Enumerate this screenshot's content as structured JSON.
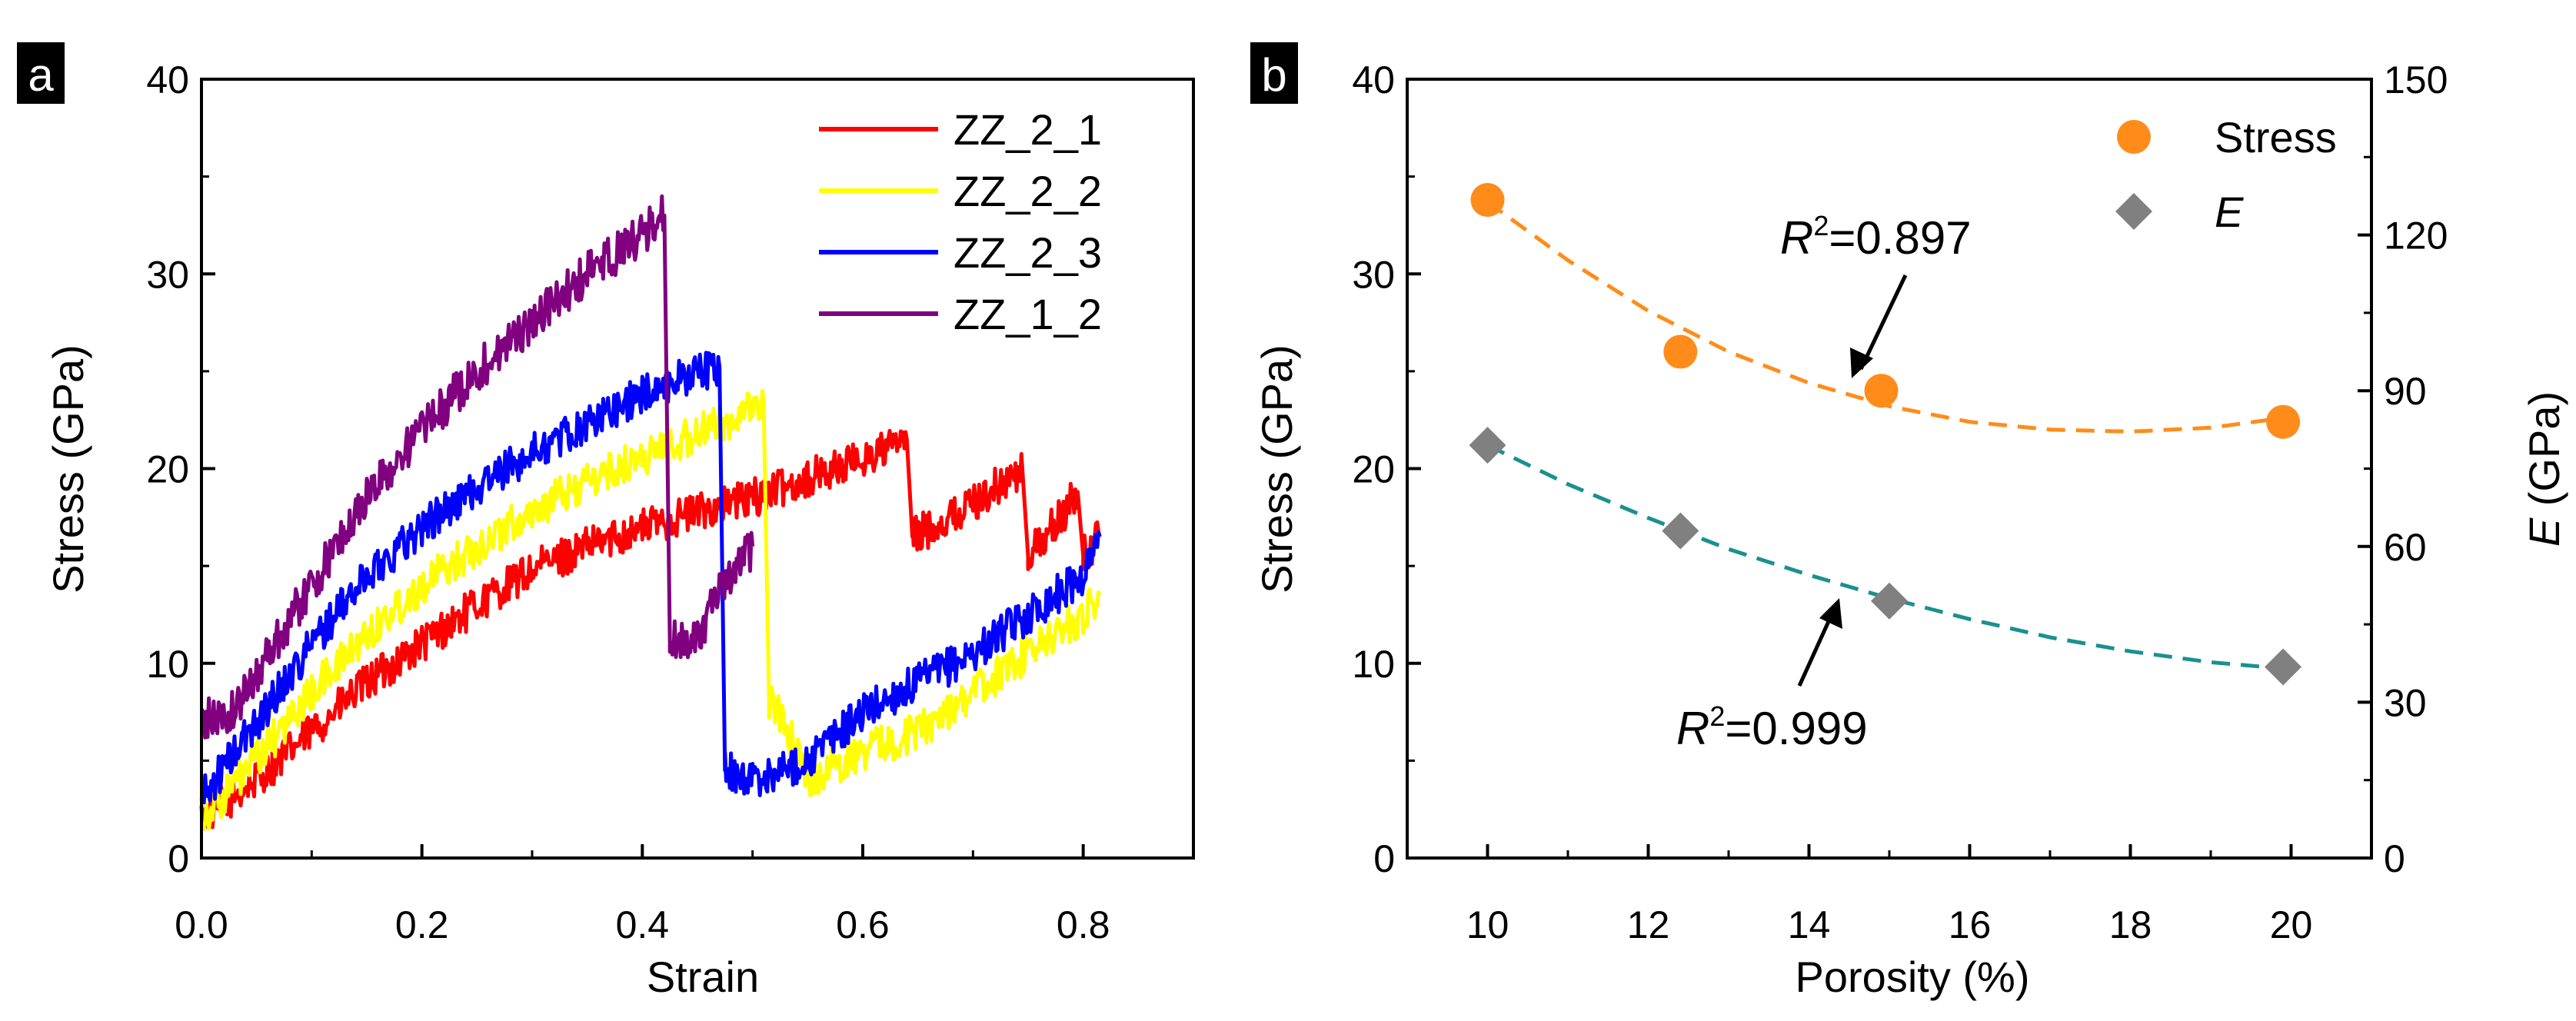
{
  "panels": {
    "a": {
      "label": "a"
    },
    "b": {
      "label": "b"
    }
  },
  "chart_data": [
    {
      "type": "line",
      "title": "",
      "xlabel": "Strain",
      "ylabel": "Stress (GPa)",
      "xlim": [
        0.0,
        0.9
      ],
      "ylim": [
        0,
        40
      ],
      "xticks": [
        0.0,
        0.2,
        0.4,
        0.6,
        0.8
      ],
      "xtick_labels": [
        "0.0",
        "0.2",
        "0.4",
        "0.6",
        "0.8"
      ],
      "yticks": [
        0,
        10,
        20,
        30,
        40
      ],
      "ytick_labels": [
        "0",
        "10",
        "20",
        "30",
        "40"
      ],
      "legend": "top-right",
      "series": [
        {
          "name": "ZZ_2_1",
          "color": "#ff0000",
          "noise": 1.0,
          "x": [
            0.0,
            0.05,
            0.1,
            0.15,
            0.2,
            0.25,
            0.3,
            0.35,
            0.4,
            0.45,
            0.5,
            0.55,
            0.6,
            0.64,
            0.645,
            0.68,
            0.72,
            0.745,
            0.75,
            0.78,
            0.795,
            0.8,
            0.815
          ],
          "y": [
            2.0,
            4.0,
            6.5,
            9.0,
            11.0,
            13.0,
            14.8,
            16.0,
            17.0,
            17.8,
            18.5,
            19.5,
            20.5,
            21.5,
            16.5,
            17.5,
            19.0,
            19.8,
            15.5,
            17.5,
            18.8,
            15.5,
            16.5
          ]
        },
        {
          "name": "ZZ_2_2",
          "color": "#ffff00",
          "noise": 1.0,
          "x": [
            0.0,
            0.05,
            0.1,
            0.15,
            0.2,
            0.25,
            0.3,
            0.35,
            0.4,
            0.45,
            0.5,
            0.51,
            0.515,
            0.53,
            0.55,
            0.6,
            0.65,
            0.7,
            0.75,
            0.8,
            0.815
          ],
          "y": [
            2.0,
            5.0,
            8.5,
            11.5,
            14.0,
            16.0,
            17.8,
            19.3,
            20.6,
            21.8,
            23.0,
            23.5,
            8.0,
            7.0,
            4.0,
            5.5,
            6.5,
            8.5,
            10.5,
            12.5,
            13.5
          ]
        },
        {
          "name": "ZZ_2_3",
          "color": "#0000ff",
          "noise": 1.0,
          "x": [
            0.0,
            0.05,
            0.1,
            0.15,
            0.2,
            0.25,
            0.3,
            0.35,
            0.4,
            0.45,
            0.47,
            0.475,
            0.5,
            0.55,
            0.6,
            0.65,
            0.7,
            0.75,
            0.8,
            0.815
          ],
          "y": [
            3.0,
            7.0,
            11.0,
            14.5,
            17.0,
            19.0,
            20.8,
            22.3,
            23.8,
            25.0,
            25.2,
            4.5,
            4.0,
            5.0,
            7.5,
            9.0,
            10.5,
            12.5,
            14.5,
            16.5
          ]
        },
        {
          "name": "ZZ_1_2",
          "color": "#800080",
          "noise": 1.1,
          "x": [
            0.0,
            0.03,
            0.06,
            0.1,
            0.15,
            0.2,
            0.25,
            0.3,
            0.35,
            0.4,
            0.42,
            0.425,
            0.45,
            0.47,
            0.5
          ],
          "y": [
            7.0,
            7.5,
            10.5,
            14.0,
            18.5,
            22.0,
            25.0,
            27.5,
            30.0,
            32.0,
            33.0,
            11.0,
            11.5,
            13.5,
            16.0
          ]
        }
      ]
    },
    {
      "type": "scatter",
      "title": "",
      "xlabel": "Porosity (%)",
      "ylabel": "Stress (GPa)",
      "y2label_italic": "E",
      "y2label_rest": " (GPa)",
      "xlim": [
        9,
        21
      ],
      "ylim": [
        0,
        40
      ],
      "y2lim": [
        0,
        150
      ],
      "xticks": [
        10,
        12,
        14,
        16,
        18,
        20
      ],
      "xtick_labels": [
        "10",
        "12",
        "14",
        "16",
        "18",
        "20"
      ],
      "yticks": [
        0,
        10,
        20,
        30,
        40
      ],
      "ytick_labels": [
        "0",
        "10",
        "20",
        "30",
        "40"
      ],
      "y2ticks": [
        0,
        30,
        60,
        90,
        120,
        150
      ],
      "y2tick_labels": [
        "0",
        "30",
        "60",
        "90",
        "120",
        "150"
      ],
      "legend": "top-right",
      "series": [
        {
          "name": "Stress",
          "marker": "circle",
          "color": "#ff8c1a",
          "axis": "left",
          "x": [
            10.0,
            12.4,
            14.9,
            19.9
          ],
          "y": [
            33.8,
            26.0,
            24.0,
            22.4
          ],
          "fit": {
            "r2_label": "=0.897",
            "color": "#ff8c1a",
            "x": [
              10.0,
              11.0,
              12.0,
              13.0,
              14.0,
              15.0,
              16.0,
              17.0,
              18.0,
              19.0,
              19.9
            ],
            "y": [
              33.7,
              30.7,
              28.1,
              26.0,
              24.4,
              23.2,
              22.4,
              22.0,
              21.9,
              22.1,
              22.6
            ]
          }
        },
        {
          "name": "E",
          "marker": "diamond",
          "color": "#808080",
          "axis": "right",
          "x": [
            10.0,
            12.4,
            15.0,
            19.9
          ],
          "y": [
            79.5,
            63.0,
            49.5,
            36.8
          ],
          "fit": {
            "r2_label": "=0.999",
            "color": "#1a9090",
            "x": [
              10.0,
              11.0,
              12.0,
              13.0,
              14.0,
              15.0,
              16.0,
              17.0,
              18.0,
              19.0,
              19.9
            ],
            "y": [
              79.5,
              72.0,
              65.5,
              59.5,
              54.5,
              50.0,
              46.0,
              42.5,
              39.8,
              37.7,
              36.5
            ]
          }
        }
      ]
    }
  ]
}
